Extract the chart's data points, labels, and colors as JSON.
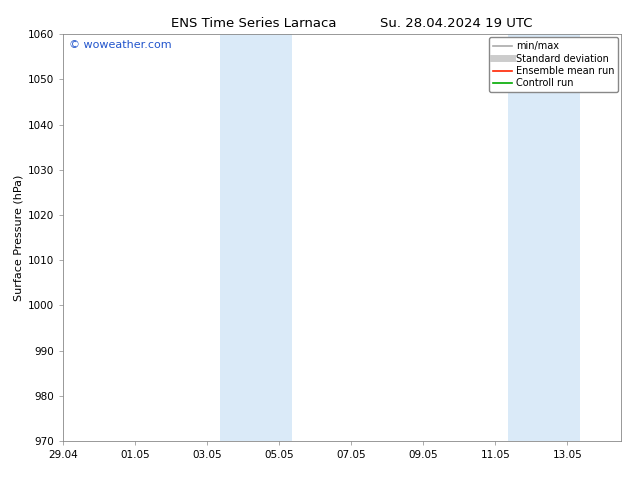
{
  "title_left": "ENS Time Series Larnaca",
  "title_right": "Su. 28.04.2024 19 UTC",
  "ylabel": "Surface Pressure (hPa)",
  "ylim": [
    970,
    1060
  ],
  "yticks": [
    970,
    980,
    990,
    1000,
    1010,
    1020,
    1030,
    1040,
    1050,
    1060
  ],
  "xtick_labels": [
    "29.04",
    "01.05",
    "03.05",
    "05.05",
    "07.05",
    "09.05",
    "11.05",
    "13.05"
  ],
  "xtick_positions": [
    0,
    2,
    4,
    6,
    8,
    10,
    12,
    14
  ],
  "xlim": [
    0,
    15.5
  ],
  "shaded_bands": [
    {
      "x_start": 4.35,
      "x_end": 6.35
    },
    {
      "x_start": 12.35,
      "x_end": 14.35
    }
  ],
  "shade_color": "#daeaf8",
  "watermark": "© woweather.com",
  "watermark_color": "#2255cc",
  "legend_items": [
    {
      "label": "min/max",
      "color": "#aaaaaa",
      "lw": 1.2,
      "style": "solid"
    },
    {
      "label": "Standard deviation",
      "color": "#cccccc",
      "lw": 5,
      "style": "solid"
    },
    {
      "label": "Ensemble mean run",
      "color": "#ff2200",
      "lw": 1.2,
      "style": "solid"
    },
    {
      "label": "Controll run",
      "color": "#00aa00",
      "lw": 1.2,
      "style": "solid"
    }
  ],
  "bg_color": "#ffffff",
  "title_fontsize": 9.5,
  "axis_label_fontsize": 8,
  "tick_fontsize": 7.5,
  "watermark_fontsize": 8,
  "legend_fontsize": 7
}
